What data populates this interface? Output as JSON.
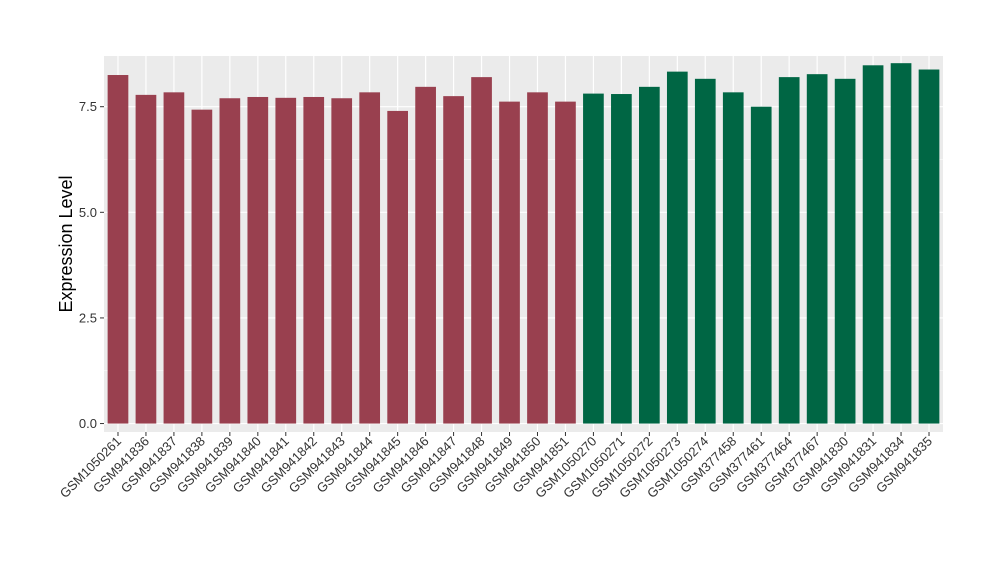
{
  "chart_data": {
    "type": "bar",
    "ylabel": "Expression Level",
    "xlabel": "",
    "ylim": [
      -0.2,
      8.7
    ],
    "yticks": [
      "0.0",
      "2.5",
      "5.0",
      "7.5"
    ],
    "grid": true,
    "legend": "none",
    "panel_background": "#EBEBEB",
    "grid_color": "#FFFFFF",
    "categories": [
      "GSM1050261",
      "GSM941836",
      "GSM941837",
      "GSM941838",
      "GSM941839",
      "GSM941840",
      "GSM941841",
      "GSM941842",
      "GSM941843",
      "GSM941844",
      "GSM941845",
      "GSM941846",
      "GSM941847",
      "GSM941848",
      "GSM941849",
      "GSM941850",
      "GSM941851",
      "GSM1050270",
      "GSM1050271",
      "GSM1050272",
      "GSM1050273",
      "GSM1050274",
      "GSM377458",
      "GSM377461",
      "GSM377464",
      "GSM377467",
      "GSM941830",
      "GSM941831",
      "GSM941834",
      "GSM941835"
    ],
    "values": [
      8.25,
      7.78,
      7.84,
      7.43,
      7.7,
      7.73,
      7.71,
      7.73,
      7.7,
      7.84,
      7.4,
      7.97,
      7.75,
      8.2,
      7.62,
      7.84,
      7.62,
      7.81,
      7.8,
      7.97,
      8.33,
      8.16,
      7.84,
      7.5,
      8.2,
      8.27,
      8.16,
      8.48,
      8.53,
      8.38
    ],
    "groups": [
      "red",
      "red",
      "red",
      "red",
      "red",
      "red",
      "red",
      "red",
      "red",
      "red",
      "red",
      "red",
      "red",
      "red",
      "red",
      "red",
      "red",
      "green",
      "green",
      "green",
      "green",
      "green",
      "green",
      "green",
      "green",
      "green",
      "green",
      "green",
      "green",
      "green"
    ],
    "colors": {
      "red": "#99404F",
      "green": "#006644"
    }
  }
}
